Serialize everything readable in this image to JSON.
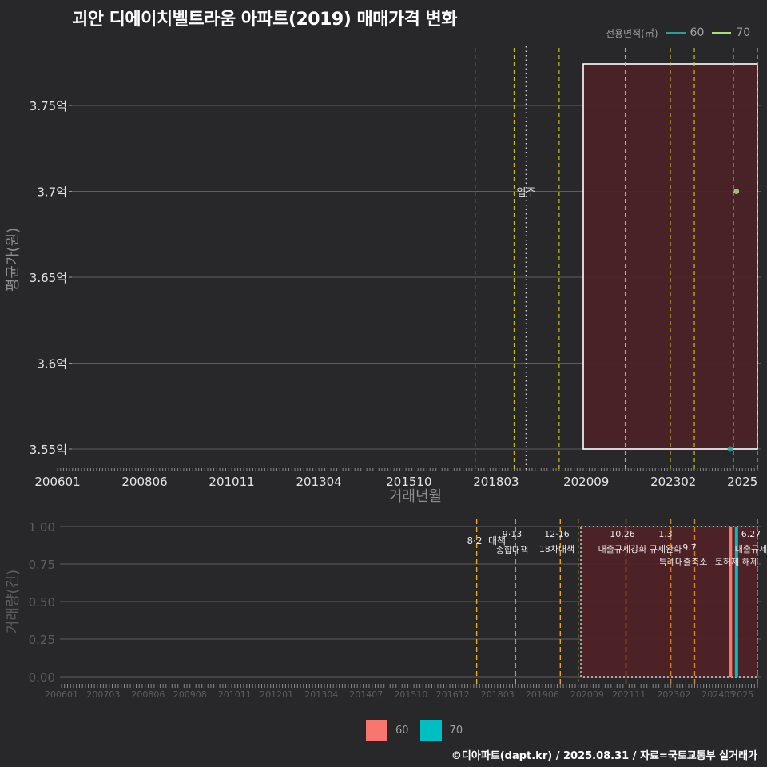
{
  "title": "괴안 디에이치벨트라움 아파트(2019) 매매가격 변화",
  "legend_top": {
    "title": "전용면적(㎡)",
    "items": [
      {
        "label": "60",
        "color": "#2a9d9a"
      },
      {
        "label": "70",
        "color": "#a6e07a"
      }
    ]
  },
  "legend_bottom": {
    "items": [
      {
        "label": "60",
        "color": "#f8766d"
      },
      {
        "label": "70",
        "color": "#00bfc4"
      }
    ]
  },
  "footer": "©디아파트(dapt.kr) / 2025.08.31 / 자료=국토교통부 실거래가",
  "chart_data": [
    {
      "type": "scatter",
      "name": "price",
      "title": "괴안 디에이치벨트라움 아파트(2019) 매매가격 변화",
      "xlabel": "거래년월",
      "ylabel": "평균가(원)",
      "x_range": [
        "2006-01",
        "2025-06"
      ],
      "ylim": [
        3.54,
        3.78
      ],
      "y_ticks": [
        {
          "value": 3.55,
          "label": "3.55억"
        },
        {
          "value": 3.6,
          "label": "3.6억"
        },
        {
          "value": 3.65,
          "label": "3.65억"
        },
        {
          "value": 3.7,
          "label": "3.7억"
        },
        {
          "value": 3.75,
          "label": "3.75억"
        }
      ],
      "x_ticks": [
        "200601",
        "200806",
        "201011",
        "201304",
        "201510",
        "201803",
        "202009",
        "202302",
        "2025"
      ],
      "series": [
        {
          "name": "60",
          "color": "#2a9d9a",
          "points": [
            {
              "x": "2024-09",
              "y": 3.55
            }
          ]
        },
        {
          "name": "70",
          "color": "#a6e07a",
          "points": [
            {
              "x": "2024-11",
              "y": 3.7
            }
          ]
        }
      ],
      "annotations": [
        {
          "label": "입주",
          "x": "2019-01"
        }
      ],
      "highlight_range": [
        "2020-11",
        "2025-06"
      ],
      "policy_lines": [
        "2017-08",
        "2018-09",
        "2019-12",
        "2021-10",
        "2023-01",
        "2023-09",
        "2024-10",
        "2025-06"
      ]
    },
    {
      "type": "bar",
      "name": "volume",
      "ylabel": "거래량(건)",
      "ylim": [
        0,
        1
      ],
      "y_ticks": [
        "0.00",
        "0.25",
        "0.50",
        "0.75",
        "1.00"
      ],
      "x_ticks": [
        "200601",
        "200703",
        "200806",
        "200908",
        "201011",
        "201201",
        "201304",
        "201407",
        "201510",
        "201612",
        "201803",
        "201906",
        "202009",
        "202111",
        "202302",
        "202405",
        "2025"
      ],
      "series": [
        {
          "name": "60",
          "color": "#f8766d",
          "bars": [
            {
              "x": "2024-09",
              "value": 1
            }
          ]
        },
        {
          "name": "70",
          "color": "#00bfc4",
          "bars": [
            {
              "x": "2024-11",
              "value": 1
            }
          ]
        }
      ],
      "highlight_range": [
        "2020-11",
        "2025-06"
      ],
      "policy_events": [
        {
          "date": "2017-08",
          "date_label": "8·2",
          "label": "대책"
        },
        {
          "date": "2018-09",
          "date_label": "9·13",
          "label": "종합대책"
        },
        {
          "date": "2019-12",
          "date_label": "12·16",
          "label": "18차대책"
        },
        {
          "date": "2021-10",
          "date_label": "10.26",
          "label": "대출규제강화"
        },
        {
          "date": "2023-01",
          "date_label": "1.3",
          "label": "규제완화"
        },
        {
          "date": "2023-09",
          "date_label": "9.7",
          "label": "특례대출축소"
        },
        {
          "date": "2025-06",
          "date_label": "6.27",
          "label": "대출규제"
        }
      ],
      "extra_labels": [
        "토허제 해제"
      ]
    }
  ]
}
